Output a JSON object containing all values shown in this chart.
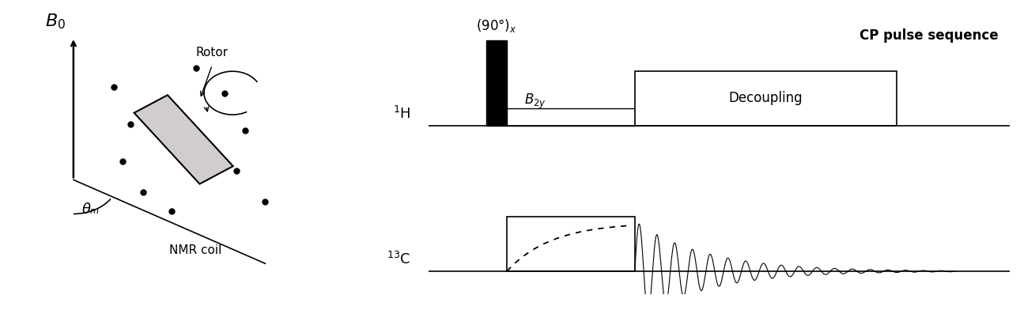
{
  "bg_color": "#f5f5f0",
  "title_right": "CP pulse sequence",
  "label_90x": "(90°)ₓ",
  "label_B2y": "$B_{2y}$",
  "label_decoupling": "Decoupling",
  "label_1H": "$^{1}$H",
  "label_13C": "$^{13}$C",
  "label_B0": "$B_0$",
  "label_theta": "θₘ",
  "label_rotor": "Rotor",
  "label_nmrcoil": "NMR coil"
}
